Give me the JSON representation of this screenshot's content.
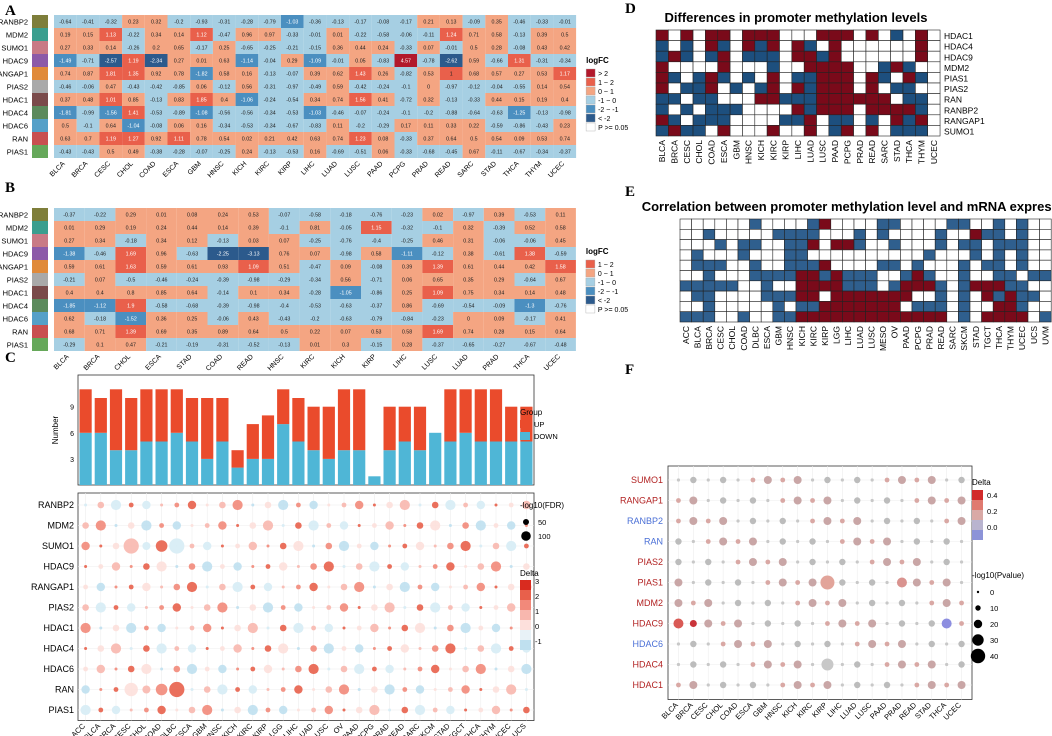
{
  "panels": {
    "A": "A",
    "B": "B",
    "C": "C",
    "D": "D",
    "E": "E",
    "F": "F"
  },
  "panelA": {
    "rows": [
      "RANBP2",
      "MDM2",
      "SUMO1",
      "HDAC9",
      "RANGAP1",
      "PIAS2",
      "HDAC1",
      "HDAC4",
      "HDAC6",
      "RAN",
      "PIAS1"
    ],
    "cols": [
      "BLCA",
      "BRCA",
      "CESC",
      "CHOL",
      "COAD",
      "ESCA",
      "GBM",
      "HNSC",
      "KICH",
      "KIRC",
      "KIRP",
      "LIHC",
      "LUAD",
      "LUSC",
      "PAAD",
      "PCPG",
      "PRAD",
      "READ",
      "SARC",
      "STAD",
      "THCA",
      "THYM",
      "UCEC"
    ],
    "row_colors": [
      "#7e7e3a",
      "#3b9e8e",
      "#c97a85",
      "#8c5aa8",
      "#e08a3a",
      "#a9a9a9",
      "#7a4a4a",
      "#5c8a5c",
      "#55a0c8",
      "#c95050",
      "#66a85a"
    ],
    "values": [
      [
        -0.64,
        -0.41,
        -0.32,
        0.23,
        0.32,
        -0.2,
        -0.93,
        -0.31,
        -0.28,
        -0.79,
        -1.03,
        -0.36,
        -0.13,
        -0.17,
        -0.08,
        -0.17,
        0.21,
        0.13,
        -0.09,
        0.35,
        -0.46,
        -0.33,
        -0.01
      ],
      [
        0.19,
        0.15,
        1.13,
        -0.22,
        0.34,
        0.14,
        1.12,
        -0.47,
        0.96,
        0.97,
        -0.33,
        -0.01,
        0.01,
        -0.22,
        -0.58,
        -0.06,
        -0.11,
        1.24,
        0.71,
        0.58,
        -0.13,
        0.39,
        0.5
      ],
      [
        0.27,
        0.33,
        0.14,
        -0.26,
        0.2,
        0.65,
        -0.17,
        0.25,
        -0.65,
        -0.25,
        -0.21,
        -0.15,
        0.36,
        0.44,
        0.24,
        -0.33,
        0.07,
        -0.01,
        0.5,
        0.28,
        -0.08,
        0.43,
        0.42
      ],
      [
        -1.49,
        -0.71,
        -2.57,
        1.19,
        -2.34,
        0.27,
        0.01,
        0.63,
        -1.14,
        -0.04,
        0.29,
        -1.09,
        -0.01,
        0.05,
        -0.83,
        4.57,
        -0.78,
        -2.62,
        0.59,
        -0.66,
        1.31,
        -0.31,
        -0.34
      ],
      [
        0.74,
        0.87,
        1.81,
        1.35,
        0.92,
        0.78,
        -1.82,
        0.58,
        0.16,
        -0.13,
        -0.07,
        0.39,
        0.62,
        1.43,
        0.26,
        -0.82,
        0.53,
        1.0,
        0.68,
        0.57,
        0.27,
        0.53,
        1.17
      ],
      [
        -0.46,
        -0.06,
        0.47,
        -0.43,
        -0.42,
        -0.85,
        0.06,
        -0.12,
        0.56,
        -0.31,
        -0.97,
        -0.49,
        0.59,
        -0.42,
        -0.24,
        -0.1,
        0.0,
        -0.97,
        -0.12,
        -0.04,
        -0.55,
        0.14,
        0.54
      ],
      [
        0.37,
        0.48,
        1.01,
        0.85,
        -0.13,
        0.83,
        1.85,
        0.4,
        -1.06,
        -0.24,
        -0.54,
        0.34,
        0.74,
        1.56,
        0.41,
        -0.72,
        0.32,
        -0.13,
        -0.33,
        0.44,
        0.15,
        0.19,
        0.4
      ],
      [
        -1.81,
        -0.99,
        -1.56,
        1.41,
        -0.53,
        -0.89,
        -1.08,
        -0.56,
        -0.56,
        -0.34,
        -0.53,
        -1.03,
        -0.46,
        -0.07,
        -0.24,
        -0.1,
        -0.2,
        -0.88,
        -0.64,
        -0.63,
        -1.25,
        -0.13,
        -0.98
      ],
      [
        0.5,
        -0.1,
        0.64,
        -1.04,
        -0.08,
        0.06,
        0.16,
        -0.34,
        -0.53,
        -0.34,
        -0.67,
        -0.83,
        0.11,
        -0.2,
        -0.29,
        0.17,
        0.11,
        0.33,
        0.22,
        -0.59,
        -0.86,
        -0.43,
        0.23
      ],
      [
        0.63,
        0.7,
        1.19,
        1.27,
        0.92,
        1.11,
        0.78,
        0.54,
        0.02,
        0.21,
        0.42,
        0.63,
        0.74,
        1.23,
        0.08,
        -0.33,
        0.37,
        0.64,
        0.5,
        0.54,
        0.09,
        0.53,
        0.74
      ],
      [
        -0.43,
        -0.43,
        0.5,
        0.49,
        -0.38,
        -0.28,
        -0.07,
        -0.25,
        0.24,
        -0.13,
        -0.53,
        0.16,
        -0.69,
        -0.51,
        0.06,
        -0.33,
        -0.68,
        -0.45,
        0.67,
        -0.11,
        -0.67,
        -0.34,
        -0.37
      ]
    ],
    "legend": {
      "title": "logFC",
      "items": [
        "> 2",
        "1 ~ 2",
        "0 ~ 1",
        "-1 ~ 0",
        "-2 ~ -1",
        "< -2",
        "P >= 0.05"
      ]
    }
  },
  "panelB": {
    "rows": [
      "RANBP2",
      "MDM2",
      "SUMO1",
      "HDAC9",
      "RANGAP1",
      "PIAS2",
      "HDAC1",
      "HDAC4",
      "HDAC6",
      "RAN",
      "PIAS1"
    ],
    "cols": [
      "BLCA",
      "BRCA",
      "CHOL",
      "ESCA",
      "STAD",
      "COAD",
      "READ",
      "HNSC",
      "KIRC",
      "KICH",
      "KIRP",
      "LIHC",
      "LUSC",
      "LUAD",
      "PRAD",
      "THCA",
      "UCEC"
    ],
    "row_colors": [
      "#7e7e3a",
      "#3b9e8e",
      "#c97a85",
      "#8c5aa8",
      "#e08a3a",
      "#a9a9a9",
      "#7a4a4a",
      "#5c8a5c",
      "#55a0c8",
      "#c95050",
      "#66a85a"
    ],
    "values": [
      [
        -0.37,
        -0.22,
        0.29,
        0.01,
        0.08,
        0.24,
        0.53,
        -0.07,
        -0.58,
        -0.18,
        -0.76,
        -0.23,
        0.02,
        -0.97,
        0.39,
        -0.53,
        0.11
      ],
      [
        0.01,
        0.29,
        0.19,
        0.24,
        0.44,
        0.14,
        0.39,
        -0.1,
        0.81,
        -0.05,
        1.15,
        -0.32,
        -0.1,
        0.32,
        -0.39,
        0.52,
        0.58
      ],
      [
        0.27,
        0.34,
        -0.18,
        0.34,
        0.12,
        -0.13,
        0.03,
        0.07,
        -0.25,
        -0.76,
        -0.4,
        -0.25,
        0.46,
        0.31,
        -0.06,
        -0.06,
        0.45
      ],
      [
        -1.38,
        -0.46,
        1.69,
        0.96,
        -0.63,
        -2.25,
        -3.13,
        0.76,
        0.07,
        -0.98,
        0.58,
        -1.11,
        -0.12,
        0.38,
        -0.61,
        1.38,
        -0.59
      ],
      [
        0.59,
        0.61,
        1.63,
        0.59,
        0.61,
        0.93,
        1.09,
        0.51,
        -0.47,
        0.09,
        -0.08,
        0.39,
        1.39,
        0.61,
        0.44,
        0.42,
        1.58
      ],
      [
        -0.21,
        0.07,
        -0.5,
        -0.46,
        -0.24,
        -0.39,
        -0.98,
        -0.29,
        -0.34,
        0.56,
        -0.71,
        0.06,
        0.65,
        0.35,
        0.29,
        -0.64,
        0.67
      ],
      [
        0.4,
        0.4,
        0.8,
        0.85,
        0.64,
        -0.14,
        0.1,
        0.34,
        -0.28,
        -1.05,
        -0.86,
        0.25,
        1.09,
        0.75,
        0.34,
        0.14,
        0.48
      ],
      [
        -1.85,
        -1.12,
        1.9,
        -0.58,
        -0.68,
        -0.39,
        -0.98,
        -0.4,
        -0.53,
        -0.63,
        -0.37,
        0.86,
        -0.69,
        -0.54,
        -0.09,
        -1.3,
        -0.76
      ],
      [
        0.62,
        -0.18,
        -1.52,
        0.36,
        0.25,
        -0.06,
        0.43,
        -0.43,
        -0.2,
        -0.63,
        -0.79,
        -0.84,
        -0.23,
        0.0,
        0.09,
        -0.17,
        0.41
      ],
      [
        0.68,
        0.71,
        1.39,
        0.69,
        0.35,
        0.89,
        0.64,
        0.5,
        0.22,
        0.07,
        0.53,
        0.58,
        1.69,
        0.74,
        0.28,
        0.15,
        0.64
      ],
      [
        -0.29,
        0.1,
        0.47,
        -0.21,
        -0.19,
        -0.31,
        -0.52,
        -0.13,
        0.01,
        0.3,
        -0.15,
        0.28,
        -0.37,
        -0.65,
        -0.27,
        -0.67,
        -0.48
      ]
    ],
    "legend": {
      "title": "logFC",
      "items": [
        "1 ~ 2",
        "0 ~ 1",
        "-1 ~ 0",
        "-2 ~ -1",
        "< -2",
        "P >= 0.05"
      ]
    }
  },
  "panelC": {
    "cols": [
      "ACC",
      "BLCA",
      "BRCA",
      "CESC",
      "CHOL",
      "COAD",
      "DLBC",
      "ESCA",
      "GBM",
      "HNSC",
      "KICH",
      "KIRC",
      "KIRP",
      "LGG",
      "LIHC",
      "LUAD",
      "LUSC",
      "OV",
      "PAAD",
      "PCPG",
      "PRAD",
      "READ",
      "SARC",
      "SKCM",
      "STAD",
      "TGCT",
      "THCA",
      "THYM",
      "UCEC",
      "UCS"
    ],
    "rows": [
      "RANBP2",
      "MDM2",
      "SUMO1",
      "HDAC9",
      "RANGAP1",
      "PIAS2",
      "HDAC1",
      "HDAC4",
      "HDAC6",
      "RAN",
      "PIAS1"
    ],
    "bar_ylabel": "Number",
    "bar_yticks": [
      "3",
      "6",
      "9"
    ],
    "up": [
      5,
      4,
      7,
      6,
      6,
      6,
      5,
      5,
      7,
      5,
      2,
      4,
      5,
      4,
      5,
      5,
      6,
      7,
      7,
      0,
      5,
      4,
      5,
      0,
      6,
      5,
      6,
      6,
      4,
      4
    ],
    "down": [
      6,
      6,
      4,
      4,
      5,
      5,
      6,
      5,
      3,
      5,
      2,
      3,
      3,
      7,
      5,
      4,
      3,
      4,
      4,
      1,
      4,
      5,
      4,
      6,
      5,
      6,
      5,
      5,
      5,
      5
    ],
    "group_legend": {
      "title": "Group",
      "up": "UP",
      "down": "DOWN"
    },
    "size_legend": {
      "title": "-log10(FDR)",
      "items": [
        "50",
        "100"
      ]
    },
    "color_legend": {
      "title": "Delta",
      "ticks": [
        "3",
        "2",
        "1",
        "0",
        "-1"
      ]
    },
    "colors": {
      "up": "#ea4b2c",
      "down": "#4fb6d6"
    }
  },
  "panelD": {
    "title": "Differences in promoter methylation levels",
    "rows": [
      "HDAC1",
      "HDAC4",
      "HDAC9",
      "MDM2",
      "PIAS1",
      "PIAS2",
      "RAN",
      "RANBP2",
      "RANGAP1",
      "SUMO1"
    ],
    "cols": [
      "BLCA",
      "BRCA",
      "CESC",
      "CHOL",
      "COAD",
      "ESCA",
      "GBM",
      "HNSC",
      "KICH",
      "KIRC",
      "KIRP",
      "LIHC",
      "LUAD",
      "LUSC",
      "PAAD",
      "PCPG",
      "PRAD",
      "READ",
      "SARC",
      "STAD",
      "THCA",
      "THYM",
      "UCEC"
    ],
    "grid": [
      "R0R0RR0RRR000RRR0R0B0R0",
      "B0B0RB0RBR0RB0R000000R0",
      "BRB0BR0BBB0RRBR000000R0",
      "R0000R000B00RRRR00BRB00",
      "RB0BRB0B0R0BBRRR0RB0RB0",
      "R0BBR0B0BR0RBRRR0R0BB00",
      "BB0BB000RRBBBRRRRRR0BB0",
      "B0B0BBB0000RBRRR0RRRRB0",
      "RB0BBB0000BBR0BB0B0RBR0",
      "BRBB0R000R00R0BR0R0BBB0"
    ],
    "colors": {
      "R": "#7a0a1a",
      "B": "#1d4f7e"
    }
  },
  "panelE": {
    "title": "Correlation between promoter methylation level and mRNA expression",
    "rows": [
      "HDAC1",
      "HDAC4",
      "HDAC9",
      "MDM2",
      "PIAS1",
      "PIAS2",
      "RAN",
      "RANBP2",
      "RANGAP",
      "SUMO1"
    ],
    "cols": [
      "ACC",
      "BLCA",
      "BRCA",
      "CESC",
      "CHOL",
      "COAD",
      "DLBC",
      "ESCA",
      "GBM",
      "HNSC",
      "KICH",
      "KIRC",
      "KIRP",
      "LGG",
      "LIHC",
      "LUAD",
      "LUSC",
      "MESO",
      "OV",
      "PAAD",
      "PCPG",
      "PRAD",
      "READ",
      "SARC",
      "SKCM",
      "STAD",
      "TGCT",
      "THCA",
      "THYM",
      "UCEC",
      "UCS",
      "UVM"
    ],
    "grid": [
      "000000B0000BR0000BB0000BB00B0B00",
      "00B00000BBBB000B0B0000B00RBB0B00",
      "000B0BB00BBR0RRB00B000B0BB0BBB00",
      "0B000B000BB0000000000B000B0B0B00",
      "0BBB00B00BBBR0000BB0B000B0BB0B00",
      "00B000BBBBRRBRBBB00BRB00B00BB0BB",
      "BBBBB00B00RRRRBBB0BRRRB0BRRRBB00",
      "0BB0000BBBRR0RRRRRRR00B0B0RBRBB0",
      "00B00000B0BBRRRRRRR0BBB0B00RRB00",
      "BBB00B00BBRRRRRRRRRRRRR0B0RRRR0B"
    ],
    "colors": {
      "R": "#7a0a1a",
      "B": "#2f5f8e"
    }
  },
  "panelF": {
    "rows": [
      "SUMO1",
      "RANGAP1",
      "RANBP2",
      "RAN",
      "PIAS2",
      "PIAS1",
      "MDM2",
      "HDAC9",
      "HDAC6",
      "HDAC4",
      "HDAC1"
    ],
    "row_label_colors": [
      "#b22222",
      "#b22222",
      "#4a6fd6",
      "#4a6fd6",
      "#b22222",
      "#b22222",
      "#b22222",
      "#b22222",
      "#4a6fd6",
      "#b22222",
      "#b22222"
    ],
    "cols": [
      "BLCA",
      "BRCA",
      "CESC",
      "CHOL",
      "COAD",
      "ESCA",
      "GBM",
      "HNSC",
      "KICH",
      "KIRC",
      "KIRP",
      "LIHC",
      "LUAD",
      "LUSC",
      "PAAD",
      "PRAD",
      "READ",
      "STAD",
      "THCA",
      "UCEC"
    ],
    "color_legend": {
      "title": "Delta",
      "ticks": [
        "0.4",
        "0.2",
        "0.0"
      ]
    },
    "size_legend": {
      "title": "-log10(Pvalue)",
      "items": [
        "0",
        "10",
        "20",
        "30",
        "40"
      ]
    }
  }
}
